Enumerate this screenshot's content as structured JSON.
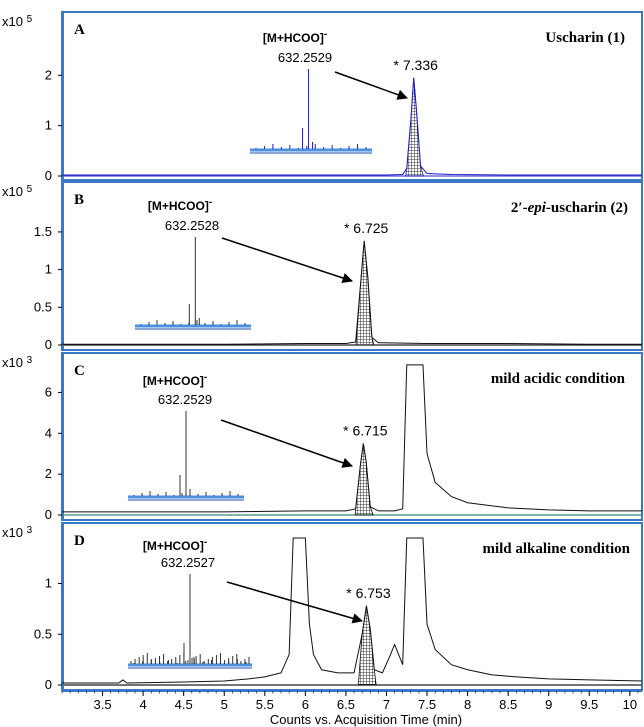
{
  "chart_data": {
    "type": "line",
    "xlabel": "Counts vs. Acquisition Time (min)",
    "xlim": [
      3.0,
      10.15
    ],
    "xticks": [
      "3.5",
      "4",
      "4.5",
      "5",
      "5.5",
      "6",
      "6.5",
      "7",
      "7.5",
      "8",
      "8.5",
      "9",
      "9.5",
      "10"
    ],
    "panels": [
      {
        "letter": "A",
        "title": "Uscharin (1)",
        "scale": "x10 5",
        "yticks": [
          "0",
          "1",
          "2"
        ],
        "ylim": [
          0,
          2.9
        ],
        "ion_label": "[M+HCOO]",
        "ion_superscript": "-",
        "mz": "632.2529",
        "peak_label": "* 7.336",
        "peak_time": 7.336,
        "peak_height": 1.95,
        "color": "#1a1acc",
        "baseline_color": "#5050d0",
        "series": {
          "x": [
            3.0,
            4.0,
            5.0,
            6.0,
            7.0,
            7.2,
            7.25,
            7.3,
            7.336,
            7.37,
            7.42,
            7.5,
            7.8,
            8.5,
            9.5,
            10.15
          ],
          "y": [
            0.02,
            0.02,
            0.02,
            0.02,
            0.02,
            0.03,
            0.15,
            1.1,
            1.95,
            1.3,
            0.2,
            0.05,
            0.03,
            0.02,
            0.02,
            0.02
          ]
        }
      },
      {
        "letter": "B",
        "title": "2′-epi-uscharin (2)",
        "title_parts": [
          "2′-",
          "epi",
          "-uscharin (2)"
        ],
        "scale": "x10 5",
        "yticks": [
          "0",
          "0.5",
          "1",
          "1.5"
        ],
        "ylim": [
          0,
          1.95
        ],
        "ion_label": "[M+HCOO]",
        "ion_superscript": "-",
        "mz": "632.2528",
        "peak_label": "* 6.725",
        "peak_time": 6.725,
        "peak_height": 1.38,
        "color": "#111111",
        "baseline_color": "#222222",
        "series": {
          "x": [
            3.0,
            4.0,
            5.0,
            6.0,
            6.5,
            6.62,
            6.68,
            6.725,
            6.77,
            6.82,
            6.9,
            7.5,
            8.5,
            9.5,
            10.15
          ],
          "y": [
            0.01,
            0.01,
            0.01,
            0.02,
            0.02,
            0.04,
            0.8,
            1.38,
            0.9,
            0.1,
            0.03,
            0.02,
            0.02,
            0.01,
            0.01
          ]
        }
      },
      {
        "letter": "C",
        "title": "mild acidic condition",
        "scale": "x10 3",
        "yticks": [
          "0",
          "2",
          "4",
          "6"
        ],
        "ylim": [
          0,
          7.0
        ],
        "ion_label": "[M+HCOO]",
        "ion_superscript": "-",
        "mz": "632.2529",
        "peak_label": "* 6.715",
        "peak_time": 6.715,
        "peak_height": 3.5,
        "color": "#111111",
        "baseline_color": "#2e8a7a",
        "series": {
          "x": [
            3.0,
            4.0,
            5.0,
            6.0,
            6.5,
            6.62,
            6.68,
            6.715,
            6.75,
            6.8,
            6.9,
            7.1,
            7.2,
            7.25,
            7.3,
            7.4,
            7.45,
            7.5,
            7.6,
            7.8,
            8.0,
            8.5,
            9.0,
            9.5,
            10.15
          ],
          "y": [
            0.15,
            0.15,
            0.15,
            0.2,
            0.2,
            0.3,
            2.5,
            3.5,
            2.6,
            0.4,
            0.2,
            0.2,
            0.3,
            7.5,
            7.5,
            7.5,
            7.5,
            3.0,
            1.6,
            0.9,
            0.6,
            0.35,
            0.25,
            0.2,
            0.2
          ]
        }
      },
      {
        "letter": "D",
        "title": "mild alkaline condition",
        "scale": "x10 3",
        "yticks": [
          "0",
          "0.5",
          "1"
        ],
        "ylim": [
          0,
          1.38
        ],
        "ion_label": "[M+HCOO]",
        "ion_superscript": "-",
        "mz": "632.2527",
        "peak_label": "* 6.753",
        "peak_time": 6.753,
        "peak_height": 0.78,
        "color": "#111111",
        "baseline_color": "#222222",
        "series": {
          "x": [
            3.0,
            3.7,
            3.75,
            3.8,
            4.5,
            5.0,
            5.3,
            5.5,
            5.7,
            5.8,
            5.85,
            5.9,
            6.0,
            6.05,
            6.1,
            6.2,
            6.4,
            6.6,
            6.7,
            6.753,
            6.8,
            6.85,
            6.95,
            7.05,
            7.1,
            7.15,
            7.2,
            7.25,
            7.3,
            7.4,
            7.45,
            7.5,
            7.6,
            7.8,
            8.0,
            8.3,
            8.6,
            9.0,
            9.5,
            10.15
          ],
          "y": [
            0.02,
            0.02,
            0.05,
            0.02,
            0.03,
            0.04,
            0.06,
            0.08,
            0.12,
            0.3,
            1.5,
            1.5,
            1.5,
            0.6,
            0.3,
            0.15,
            0.12,
            0.12,
            0.5,
            0.78,
            0.55,
            0.15,
            0.12,
            0.3,
            0.4,
            0.3,
            0.2,
            1.5,
            1.5,
            1.5,
            1.5,
            0.6,
            0.35,
            0.2,
            0.15,
            0.1,
            0.08,
            0.06,
            0.05,
            0.04
          ]
        }
      }
    ]
  }
}
